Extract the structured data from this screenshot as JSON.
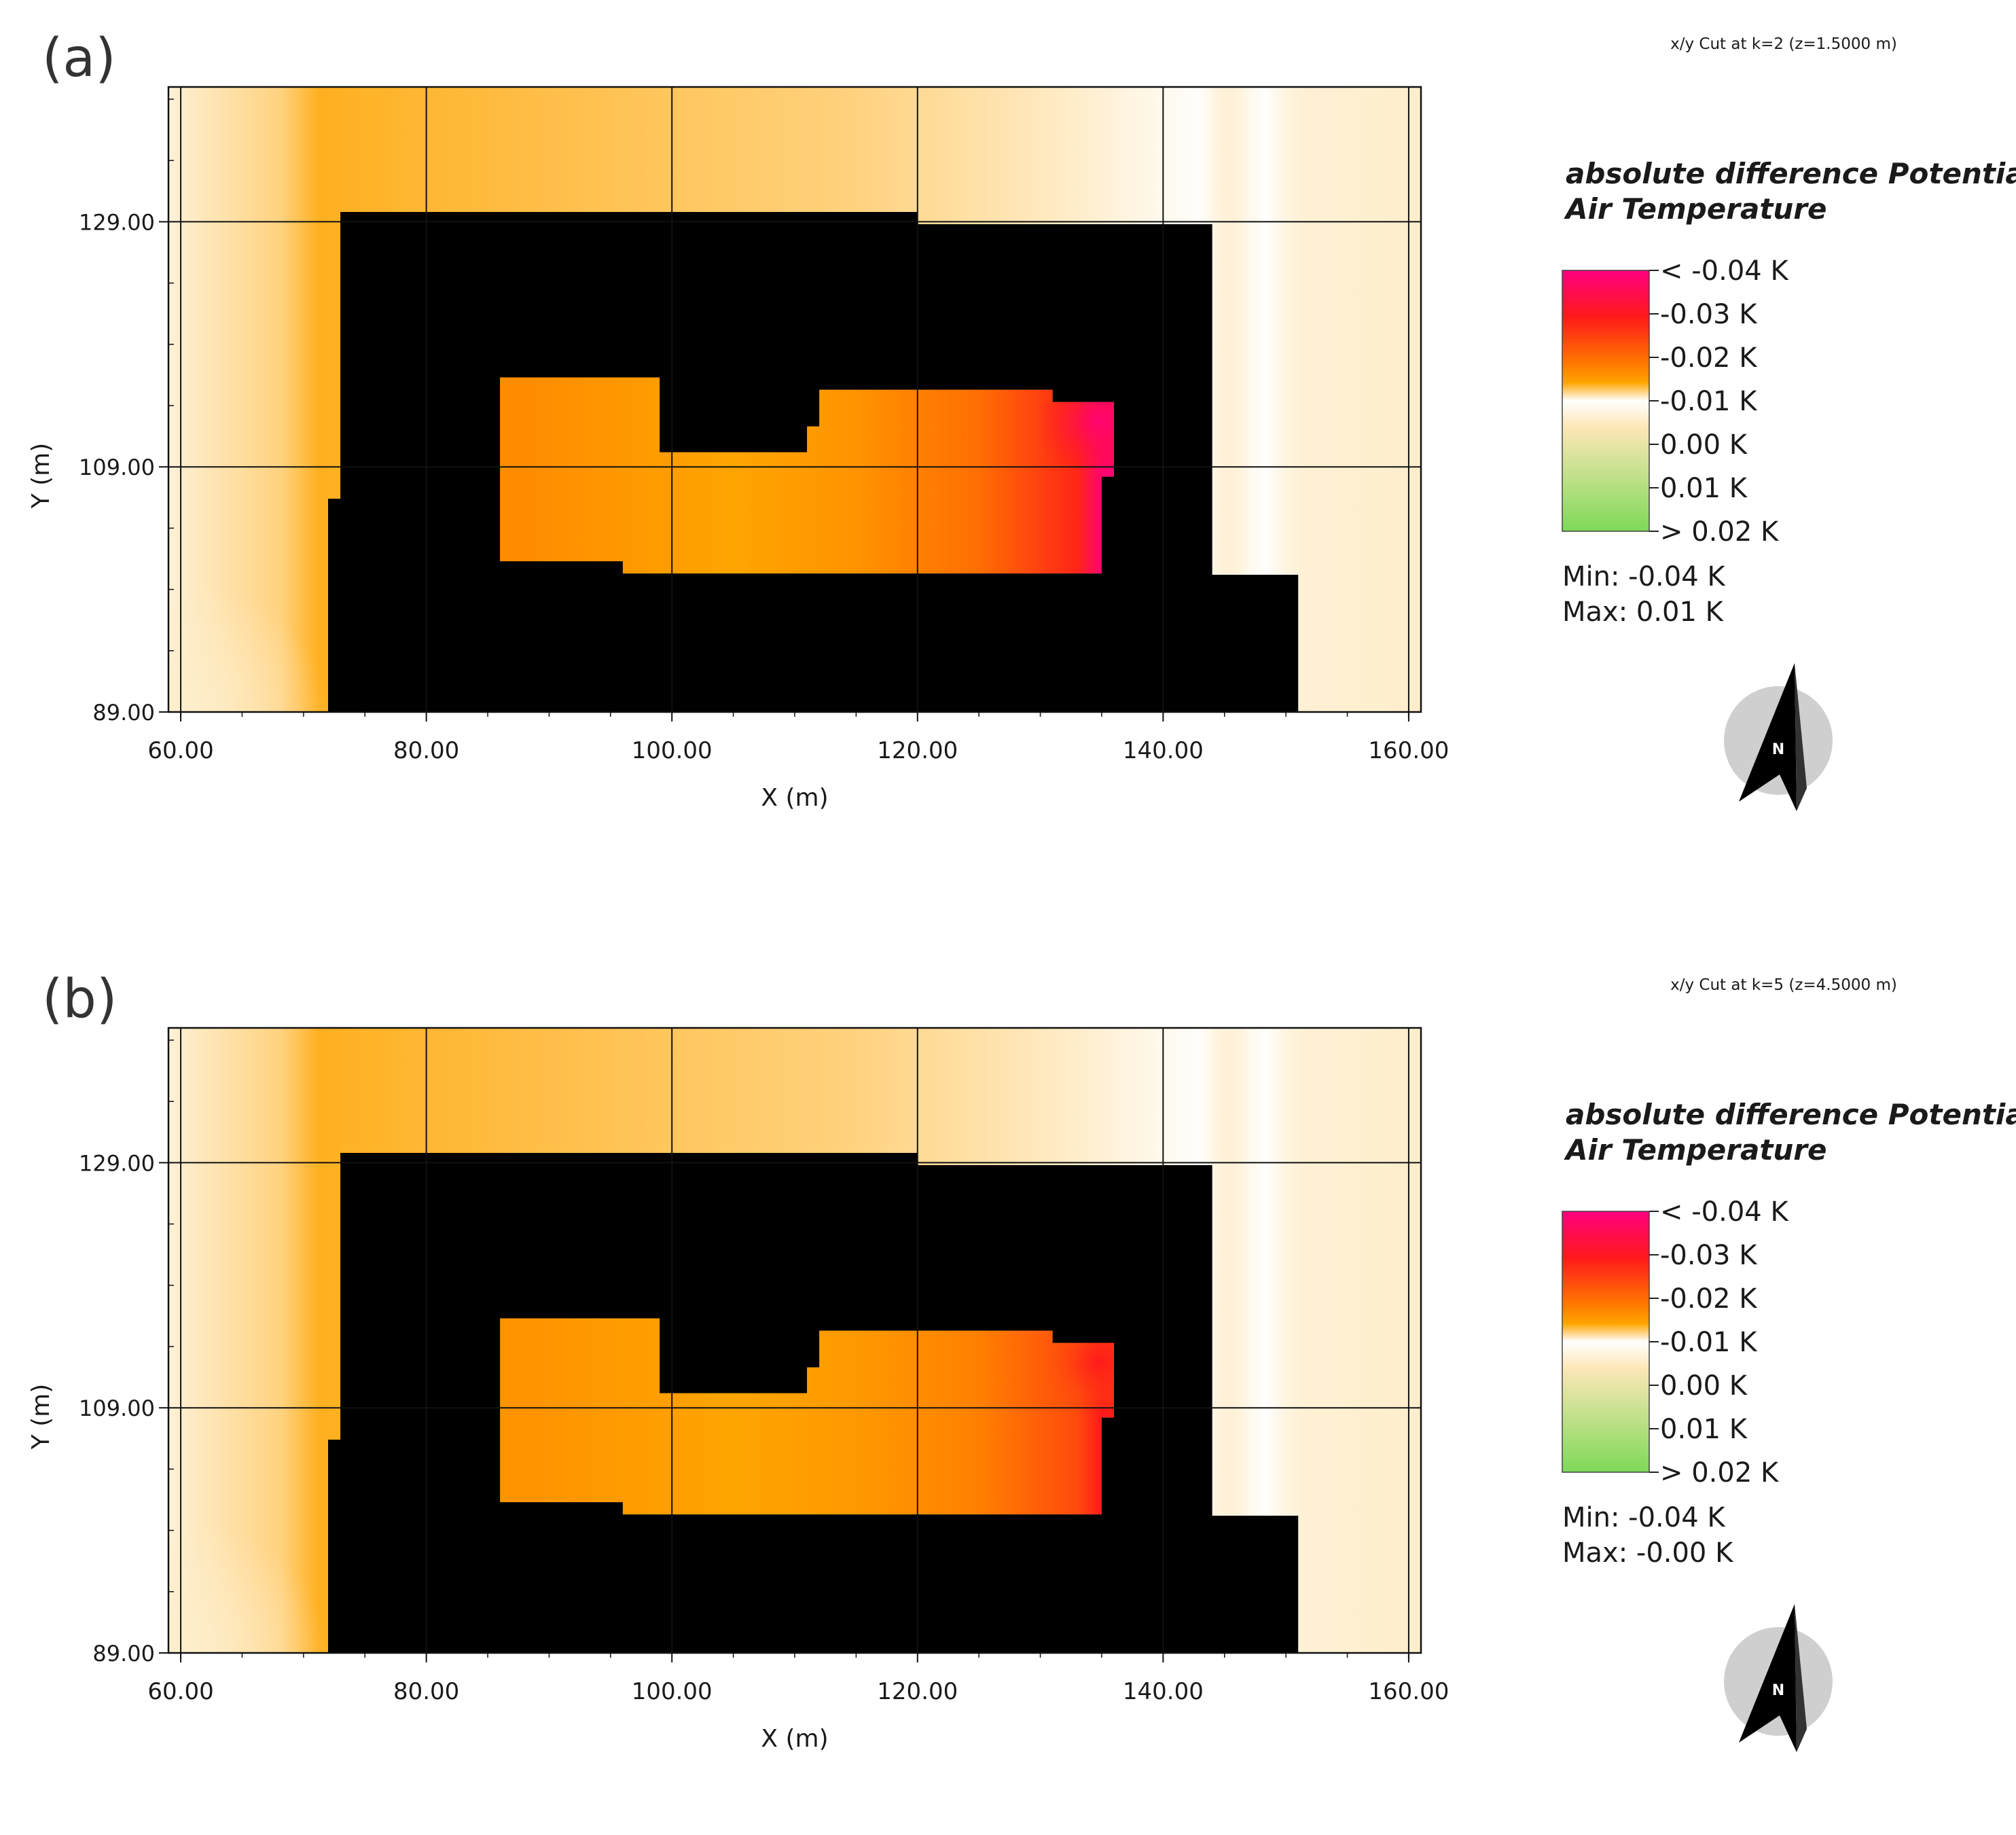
{
  "colors": {
    "building": "#000000",
    "background": "#ffffff",
    "scale": [
      "#ff0080",
      "#ff1a1a",
      "#ff7a00",
      "#ffa500",
      "#ffffff",
      "#fde7b8",
      "#7ed957"
    ]
  },
  "chart_data": [
    {
      "type": "heatmap",
      "panel_label": "(a)",
      "cut_label": "x/y Cut at k=2 (z=1.5000 m)",
      "title": "absolute difference Potential Air Temperature",
      "title_lines": [
        "absolute difference Potential",
        "Air Temperature"
      ],
      "xlabel": "X (m)",
      "ylabel": "Y (m)",
      "xlim": [
        59,
        161
      ],
      "ylim": [
        89,
        140
      ],
      "x_ticks": [
        60,
        80,
        100,
        120,
        140,
        160
      ],
      "x_tick_labels": [
        "60.00",
        "80.00",
        "100.00",
        "120.00",
        "140.00",
        "160.00"
      ],
      "y_ticks": [
        89,
        109,
        129
      ],
      "y_tick_labels": [
        "89.00",
        "109.00",
        "129.00"
      ],
      "grid": true,
      "legend_labels": [
        "< -0.04 K",
        "-0.03  K",
        "-0.02  K",
        "-0.01  K",
        "0.00  K",
        "0.01  K",
        "> 0.02 K"
      ],
      "min_label": "Min: -0.04 K",
      "max_label": "Max: 0.01 K",
      "north_label": "N",
      "courtyard_values": [
        {
          "x": 88,
          "value": -0.022
        },
        {
          "x": 105,
          "value": -0.018
        },
        {
          "x": 115,
          "value": -0.021
        },
        {
          "x": 125,
          "value": -0.026
        },
        {
          "x": 133,
          "value": -0.032
        },
        {
          "x": 135,
          "value": -0.039
        }
      ],
      "outside_values": [
        {
          "region": "west",
          "value": -0.017
        },
        {
          "region": "north",
          "value": -0.014
        },
        {
          "region": "east",
          "value": -0.01
        },
        {
          "region": "south-east",
          "value": -0.012
        }
      ]
    },
    {
      "type": "heatmap",
      "panel_label": "(b)",
      "cut_label": "x/y Cut at k=5 (z=4.5000 m)",
      "title": "absolute difference Potential Air Temperature",
      "title_lines": [
        "absolute difference Potential",
        "Air Temperature"
      ],
      "xlabel": "X (m)",
      "ylabel": "Y (m)",
      "xlim": [
        59,
        161
      ],
      "ylim": [
        89,
        140
      ],
      "x_ticks": [
        60,
        80,
        100,
        120,
        140,
        160
      ],
      "x_tick_labels": [
        "60.00",
        "80.00",
        "100.00",
        "120.00",
        "140.00",
        "160.00"
      ],
      "y_ticks": [
        89,
        109,
        129
      ],
      "y_tick_labels": [
        "89.00",
        "109.00",
        "129.00"
      ],
      "grid": true,
      "legend_labels": [
        "< -0.04 K",
        "-0.03  K",
        "-0.02  K",
        "-0.01  K",
        "0.00  K",
        "0.01  K",
        "> 0.02 K"
      ],
      "min_label": "Min: -0.04 K",
      "max_label": "Max: -0.00 K",
      "north_label": "N",
      "courtyard_values": [
        {
          "x": 88,
          "value": -0.021
        },
        {
          "x": 105,
          "value": -0.018
        },
        {
          "x": 115,
          "value": -0.02
        },
        {
          "x": 125,
          "value": -0.024
        },
        {
          "x": 133,
          "value": -0.029
        },
        {
          "x": 135,
          "value": -0.033
        }
      ],
      "outside_values": [
        {
          "region": "west",
          "value": -0.017
        },
        {
          "region": "north",
          "value": -0.014
        },
        {
          "region": "east",
          "value": -0.01
        },
        {
          "region": "south-east",
          "value": -0.012
        }
      ]
    }
  ]
}
